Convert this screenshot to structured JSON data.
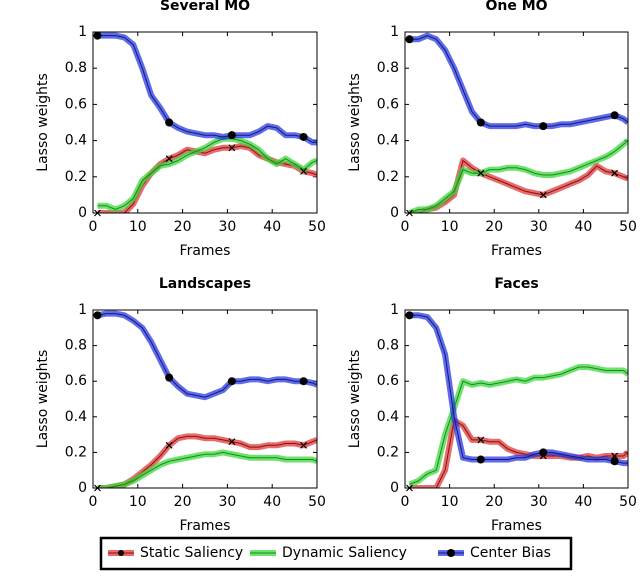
{
  "chart_data": [
    {
      "type": "line",
      "title": "Several MO",
      "x_label": "Frames",
      "y_label": "Lasso weights",
      "x": [
        1,
        3,
        5,
        7,
        9,
        11,
        13,
        15,
        17,
        19,
        21,
        23,
        25,
        27,
        29,
        31,
        33,
        35,
        37,
        39,
        41,
        43,
        45,
        47,
        49,
        50
      ],
      "xlim": [
        0,
        50
      ],
      "ylim": [
        0,
        1
      ],
      "xticks": [
        0,
        10,
        20,
        30,
        40,
        50
      ],
      "yticks": [
        0,
        0.2,
        0.4,
        0.6,
        0.8,
        1
      ],
      "series": [
        {
          "name": "Static Saliency",
          "color": "#e03a3a",
          "values": [
            0,
            0,
            0,
            0,
            0.05,
            0.15,
            0.22,
            0.27,
            0.3,
            0.32,
            0.35,
            0.34,
            0.33,
            0.35,
            0.36,
            0.36,
            0.37,
            0.36,
            0.32,
            0.3,
            0.28,
            0.27,
            0.26,
            0.23,
            0.22,
            0.21
          ]
        },
        {
          "name": "Dynamic Saliency",
          "color": "#3ed83e",
          "values": [
            0.04,
            0.04,
            0.02,
            0.04,
            0.08,
            0.18,
            0.22,
            0.26,
            0.27,
            0.29,
            0.32,
            0.34,
            0.36,
            0.39,
            0.41,
            0.41,
            0.4,
            0.38,
            0.35,
            0.3,
            0.27,
            0.3,
            0.27,
            0.24,
            0.28,
            0.29
          ]
        },
        {
          "name": "Center Bias",
          "color": "#2a3ae0",
          "values": [
            0.98,
            0.98,
            0.98,
            0.97,
            0.93,
            0.8,
            0.65,
            0.58,
            0.5,
            0.47,
            0.45,
            0.44,
            0.43,
            0.43,
            0.42,
            0.43,
            0.43,
            0.43,
            0.45,
            0.48,
            0.47,
            0.43,
            0.43,
            0.42,
            0.39,
            0.39
          ]
        }
      ]
    },
    {
      "type": "line",
      "title": "One MO",
      "x_label": "Frames",
      "y_label": "Lasso weights",
      "x": [
        1,
        3,
        5,
        7,
        9,
        11,
        13,
        15,
        17,
        19,
        21,
        23,
        25,
        27,
        29,
        31,
        33,
        35,
        37,
        39,
        41,
        43,
        45,
        47,
        49,
        50
      ],
      "xlim": [
        0,
        50
      ],
      "ylim": [
        0,
        1
      ],
      "xticks": [
        0,
        10,
        20,
        30,
        40,
        50
      ],
      "yticks": [
        0,
        0.2,
        0.4,
        0.6,
        0.8,
        1
      ],
      "series": [
        {
          "color": "#e03a3a",
          "values": [
            0,
            0,
            0.02,
            0.03,
            0.06,
            0.1,
            0.29,
            0.25,
            0.22,
            0.2,
            0.18,
            0.16,
            0.14,
            0.12,
            0.11,
            0.1,
            0.12,
            0.14,
            0.16,
            0.18,
            0.21,
            0.26,
            0.23,
            0.22,
            0.2,
            0.19
          ]
        },
        {
          "color": "#3ed83e",
          "values": [
            0,
            0.02,
            0.02,
            0.04,
            0.08,
            0.12,
            0.24,
            0.22,
            0.22,
            0.24,
            0.24,
            0.25,
            0.25,
            0.24,
            0.22,
            0.21,
            0.21,
            0.22,
            0.23,
            0.25,
            0.27,
            0.29,
            0.31,
            0.34,
            0.38,
            0.4
          ]
        },
        {
          "color": "#2a3ae0",
          "values": [
            0.96,
            0.96,
            0.98,
            0.96,
            0.9,
            0.8,
            0.68,
            0.56,
            0.5,
            0.48,
            0.48,
            0.48,
            0.48,
            0.49,
            0.48,
            0.48,
            0.48,
            0.49,
            0.49,
            0.5,
            0.51,
            0.52,
            0.53,
            0.54,
            0.52,
            0.5
          ]
        }
      ]
    },
    {
      "type": "line",
      "title": "Landscapes",
      "x_label": "Frames",
      "y_label": "Lasso weights",
      "x": [
        1,
        3,
        5,
        7,
        9,
        11,
        13,
        15,
        17,
        19,
        21,
        23,
        25,
        27,
        29,
        31,
        33,
        35,
        37,
        39,
        41,
        43,
        45,
        47,
        49,
        50
      ],
      "xlim": [
        0,
        50
      ],
      "ylim": [
        0,
        1
      ],
      "xticks": [
        0,
        10,
        20,
        30,
        40,
        50
      ],
      "yticks": [
        0,
        0.2,
        0.4,
        0.6,
        0.8,
        1
      ],
      "series": [
        {
          "color": "#e03a3a",
          "values": [
            0,
            0,
            0.01,
            0.02,
            0.05,
            0.09,
            0.13,
            0.18,
            0.24,
            0.28,
            0.29,
            0.29,
            0.28,
            0.28,
            0.27,
            0.26,
            0.25,
            0.23,
            0.23,
            0.24,
            0.24,
            0.25,
            0.25,
            0.24,
            0.26,
            0.27
          ]
        },
        {
          "color": "#3ed83e",
          "values": [
            0,
            0,
            0.01,
            0.02,
            0.04,
            0.07,
            0.1,
            0.13,
            0.15,
            0.16,
            0.17,
            0.18,
            0.19,
            0.19,
            0.2,
            0.19,
            0.18,
            0.17,
            0.17,
            0.17,
            0.17,
            0.16,
            0.16,
            0.16,
            0.16,
            0.15
          ]
        },
        {
          "color": "#2a3ae0",
          "values": [
            0.97,
            0.98,
            0.98,
            0.97,
            0.94,
            0.9,
            0.82,
            0.72,
            0.62,
            0.57,
            0.53,
            0.52,
            0.51,
            0.53,
            0.55,
            0.6,
            0.6,
            0.61,
            0.61,
            0.6,
            0.61,
            0.61,
            0.6,
            0.6,
            0.59,
            0.58
          ]
        }
      ]
    },
    {
      "type": "line",
      "title": "Faces",
      "x_label": "Frames",
      "y_label": "Lasso weights",
      "x": [
        1,
        3,
        5,
        7,
        9,
        11,
        13,
        15,
        17,
        19,
        21,
        23,
        25,
        27,
        29,
        31,
        33,
        35,
        37,
        39,
        41,
        43,
        45,
        47,
        49,
        50
      ],
      "xlim": [
        0,
        50
      ],
      "ylim": [
        0,
        1
      ],
      "xticks": [
        0,
        10,
        20,
        30,
        40,
        50
      ],
      "yticks": [
        0,
        0.2,
        0.4,
        0.6,
        0.8,
        1
      ],
      "series": [
        {
          "color": "#e03a3a",
          "values": [
            0,
            0,
            0,
            0,
            0.1,
            0.38,
            0.35,
            0.27,
            0.27,
            0.26,
            0.26,
            0.22,
            0.2,
            0.19,
            0.18,
            0.18,
            0.18,
            0.18,
            0.17,
            0.17,
            0.18,
            0.17,
            0.18,
            0.18,
            0.18,
            0.2
          ]
        },
        {
          "color": "#3ed83e",
          "values": [
            0.02,
            0.04,
            0.08,
            0.1,
            0.3,
            0.45,
            0.6,
            0.58,
            0.59,
            0.58,
            0.59,
            0.6,
            0.61,
            0.6,
            0.62,
            0.62,
            0.63,
            0.64,
            0.66,
            0.68,
            0.68,
            0.67,
            0.66,
            0.66,
            0.66,
            0.64
          ]
        },
        {
          "color": "#2a3ae0",
          "values": [
            0.97,
            0.97,
            0.96,
            0.9,
            0.75,
            0.4,
            0.17,
            0.16,
            0.16,
            0.16,
            0.16,
            0.16,
            0.17,
            0.17,
            0.19,
            0.2,
            0.2,
            0.19,
            0.18,
            0.17,
            0.16,
            0.16,
            0.16,
            0.15,
            0.14,
            0.14
          ]
        }
      ]
    }
  ]
}
